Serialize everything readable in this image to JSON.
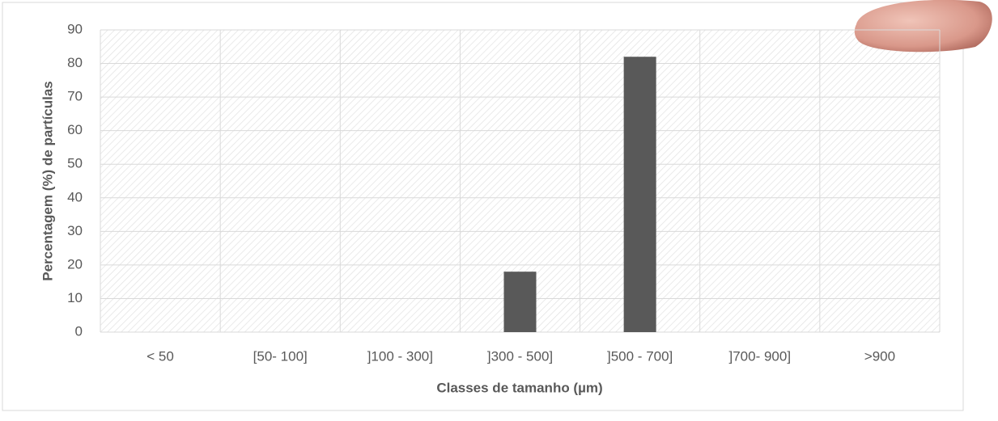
{
  "chart_data": {
    "type": "bar",
    "x_label": "Classes de tamanho (µm)",
    "y_label": "Percentagem (%) de partículas",
    "categories": [
      "< 50",
      "[50- 100]",
      "]100 - 300]",
      "]300 - 500]",
      "]500 - 700]",
      "]700- 900]",
      ">900"
    ],
    "values": [
      0,
      0,
      0,
      18,
      82,
      0,
      0
    ],
    "color": "#595959",
    "ylim": [
      0,
      90
    ],
    "yticks": [
      0,
      10,
      20,
      30,
      40,
      50,
      60,
      70,
      80,
      90
    ],
    "grid": true
  }
}
